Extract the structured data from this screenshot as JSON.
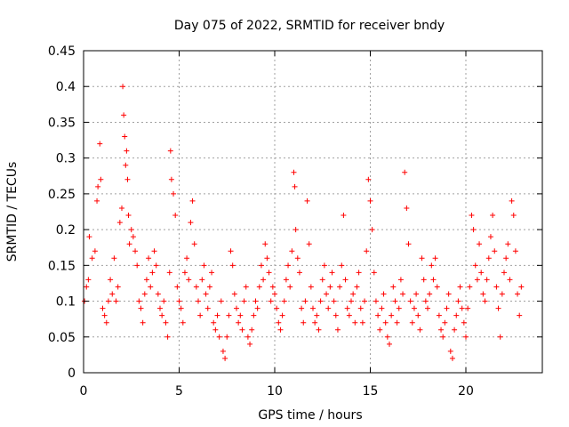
{
  "chart_data": {
    "type": "scatter",
    "title": "Day 075 of 2022, SRMTID for receiver bndy",
    "xlabel": "GPS time / hours",
    "ylabel": "SRMTID / TECUs",
    "xlim": [
      0,
      24
    ],
    "ylim": [
      0,
      0.45
    ],
    "xticks": [
      0,
      5,
      10,
      15,
      20
    ],
    "xtick_labels": [
      "0",
      "5",
      "10",
      "15",
      "20"
    ],
    "yticks": [
      0,
      0.05,
      0.1,
      0.15,
      0.2,
      0.25,
      0.3,
      0.35,
      0.4,
      0.45
    ],
    "ytick_labels": [
      "0",
      "0.05",
      "0.1",
      "0.15",
      "0.2",
      "0.25",
      "0.3",
      "0.35",
      "0.4",
      "0.45"
    ],
    "grid": true,
    "legend": "none",
    "marker": "plus",
    "color": "#ff0000",
    "series": [
      {
        "name": "SRMTID",
        "points": [
          [
            0.05,
            0.1
          ],
          [
            0.15,
            0.12
          ],
          [
            0.25,
            0.13
          ],
          [
            0.3,
            0.19
          ],
          [
            0.45,
            0.16
          ],
          [
            0.6,
            0.17
          ],
          [
            0.7,
            0.24
          ],
          [
            0.75,
            0.26
          ],
          [
            0.85,
            0.32
          ],
          [
            0.9,
            0.27
          ],
          [
            1.0,
            0.09
          ],
          [
            1.1,
            0.08
          ],
          [
            1.2,
            0.07
          ],
          [
            1.3,
            0.1
          ],
          [
            1.4,
            0.13
          ],
          [
            1.5,
            0.11
          ],
          [
            1.6,
            0.16
          ],
          [
            1.7,
            0.1
          ],
          [
            1.8,
            0.12
          ],
          [
            1.9,
            0.21
          ],
          [
            2.0,
            0.23
          ],
          [
            2.05,
            0.4
          ],
          [
            2.1,
            0.36
          ],
          [
            2.15,
            0.33
          ],
          [
            2.2,
            0.29
          ],
          [
            2.25,
            0.31
          ],
          [
            2.3,
            0.27
          ],
          [
            2.35,
            0.22
          ],
          [
            2.4,
            0.18
          ],
          [
            2.5,
            0.2
          ],
          [
            2.6,
            0.19
          ],
          [
            2.7,
            0.17
          ],
          [
            2.8,
            0.15
          ],
          [
            2.9,
            0.1
          ],
          [
            3.0,
            0.09
          ],
          [
            3.1,
            0.07
          ],
          [
            3.2,
            0.11
          ],
          [
            3.3,
            0.13
          ],
          [
            3.4,
            0.16
          ],
          [
            3.5,
            0.12
          ],
          [
            3.6,
            0.14
          ],
          [
            3.7,
            0.17
          ],
          [
            3.8,
            0.15
          ],
          [
            3.9,
            0.11
          ],
          [
            4.0,
            0.09
          ],
          [
            4.1,
            0.08
          ],
          [
            4.2,
            0.1
          ],
          [
            4.3,
            0.07
          ],
          [
            4.4,
            0.05
          ],
          [
            4.5,
            0.14
          ],
          [
            4.55,
            0.31
          ],
          [
            4.6,
            0.27
          ],
          [
            4.7,
            0.25
          ],
          [
            4.8,
            0.22
          ],
          [
            4.9,
            0.12
          ],
          [
            5.0,
            0.1
          ],
          [
            5.1,
            0.09
          ],
          [
            5.2,
            0.07
          ],
          [
            5.3,
            0.14
          ],
          [
            5.4,
            0.16
          ],
          [
            5.5,
            0.13
          ],
          [
            5.6,
            0.21
          ],
          [
            5.7,
            0.24
          ],
          [
            5.8,
            0.18
          ],
          [
            5.9,
            0.12
          ],
          [
            6.0,
            0.1
          ],
          [
            6.1,
            0.08
          ],
          [
            6.2,
            0.13
          ],
          [
            6.3,
            0.15
          ],
          [
            6.4,
            0.11
          ],
          [
            6.5,
            0.09
          ],
          [
            6.6,
            0.12
          ],
          [
            6.7,
            0.14
          ],
          [
            6.8,
            0.07
          ],
          [
            6.9,
            0.06
          ],
          [
            7.0,
            0.08
          ],
          [
            7.1,
            0.05
          ],
          [
            7.2,
            0.1
          ],
          [
            7.3,
            0.03
          ],
          [
            7.4,
            0.02
          ],
          [
            7.5,
            0.05
          ],
          [
            7.6,
            0.08
          ],
          [
            7.7,
            0.17
          ],
          [
            7.8,
            0.15
          ],
          [
            7.9,
            0.11
          ],
          [
            8.0,
            0.09
          ],
          [
            8.1,
            0.07
          ],
          [
            8.2,
            0.08
          ],
          [
            8.3,
            0.06
          ],
          [
            8.4,
            0.1
          ],
          [
            8.5,
            0.12
          ],
          [
            8.6,
            0.05
          ],
          [
            8.7,
            0.04
          ],
          [
            8.8,
            0.06
          ],
          [
            8.9,
            0.08
          ],
          [
            9.0,
            0.1
          ],
          [
            9.1,
            0.09
          ],
          [
            9.2,
            0.12
          ],
          [
            9.3,
            0.15
          ],
          [
            9.4,
            0.13
          ],
          [
            9.5,
            0.18
          ],
          [
            9.6,
            0.16
          ],
          [
            9.7,
            0.14
          ],
          [
            9.8,
            0.1
          ],
          [
            9.9,
            0.12
          ],
          [
            10.0,
            0.11
          ],
          [
            10.1,
            0.09
          ],
          [
            10.2,
            0.07
          ],
          [
            10.3,
            0.06
          ],
          [
            10.4,
            0.08
          ],
          [
            10.5,
            0.1
          ],
          [
            10.6,
            0.13
          ],
          [
            10.7,
            0.15
          ],
          [
            10.8,
            0.12
          ],
          [
            10.9,
            0.17
          ],
          [
            11.0,
            0.28
          ],
          [
            11.05,
            0.26
          ],
          [
            11.1,
            0.2
          ],
          [
            11.2,
            0.16
          ],
          [
            11.3,
            0.14
          ],
          [
            11.4,
            0.09
          ],
          [
            11.5,
            0.07
          ],
          [
            11.6,
            0.1
          ],
          [
            11.7,
            0.24
          ],
          [
            11.8,
            0.18
          ],
          [
            11.9,
            0.12
          ],
          [
            12.0,
            0.09
          ],
          [
            12.1,
            0.07
          ],
          [
            12.2,
            0.08
          ],
          [
            12.3,
            0.06
          ],
          [
            12.4,
            0.1
          ],
          [
            12.5,
            0.13
          ],
          [
            12.6,
            0.15
          ],
          [
            12.7,
            0.11
          ],
          [
            12.8,
            0.09
          ],
          [
            12.9,
            0.12
          ],
          [
            13.0,
            0.14
          ],
          [
            13.1,
            0.1
          ],
          [
            13.2,
            0.08
          ],
          [
            13.3,
            0.06
          ],
          [
            13.4,
            0.12
          ],
          [
            13.5,
            0.15
          ],
          [
            13.6,
            0.22
          ],
          [
            13.7,
            0.13
          ],
          [
            13.8,
            0.09
          ],
          [
            13.9,
            0.08
          ],
          [
            14.0,
            0.1
          ],
          [
            14.1,
            0.11
          ],
          [
            14.2,
            0.07
          ],
          [
            14.3,
            0.12
          ],
          [
            14.4,
            0.14
          ],
          [
            14.5,
            0.09
          ],
          [
            14.6,
            0.07
          ],
          [
            14.7,
            0.1
          ],
          [
            14.8,
            0.17
          ],
          [
            14.9,
            0.27
          ],
          [
            15.0,
            0.24
          ],
          [
            15.1,
            0.2
          ],
          [
            15.2,
            0.14
          ],
          [
            15.3,
            0.1
          ],
          [
            15.4,
            0.08
          ],
          [
            15.5,
            0.06
          ],
          [
            15.6,
            0.09
          ],
          [
            15.7,
            0.11
          ],
          [
            15.8,
            0.07
          ],
          [
            15.9,
            0.05
          ],
          [
            16.0,
            0.04
          ],
          [
            16.1,
            0.08
          ],
          [
            16.2,
            0.12
          ],
          [
            16.3,
            0.1
          ],
          [
            16.4,
            0.07
          ],
          [
            16.5,
            0.09
          ],
          [
            16.6,
            0.13
          ],
          [
            16.7,
            0.11
          ],
          [
            16.8,
            0.28
          ],
          [
            16.9,
            0.23
          ],
          [
            17.0,
            0.18
          ],
          [
            17.1,
            0.1
          ],
          [
            17.2,
            0.07
          ],
          [
            17.3,
            0.09
          ],
          [
            17.4,
            0.11
          ],
          [
            17.5,
            0.08
          ],
          [
            17.6,
            0.06
          ],
          [
            17.7,
            0.16
          ],
          [
            17.8,
            0.13
          ],
          [
            17.9,
            0.1
          ],
          [
            18.0,
            0.09
          ],
          [
            18.1,
            0.11
          ],
          [
            18.2,
            0.15
          ],
          [
            18.3,
            0.13
          ],
          [
            18.4,
            0.16
          ],
          [
            18.5,
            0.12
          ],
          [
            18.6,
            0.08
          ],
          [
            18.7,
            0.06
          ],
          [
            18.8,
            0.05
          ],
          [
            18.9,
            0.07
          ],
          [
            19.0,
            0.09
          ],
          [
            19.1,
            0.11
          ],
          [
            19.2,
            0.03
          ],
          [
            19.3,
            0.02
          ],
          [
            19.4,
            0.06
          ],
          [
            19.5,
            0.08
          ],
          [
            19.6,
            0.1
          ],
          [
            19.7,
            0.12
          ],
          [
            19.8,
            0.09
          ],
          [
            19.9,
            0.07
          ],
          [
            20.0,
            0.05
          ],
          [
            20.1,
            0.09
          ],
          [
            20.2,
            0.12
          ],
          [
            20.3,
            0.22
          ],
          [
            20.4,
            0.2
          ],
          [
            20.5,
            0.15
          ],
          [
            20.6,
            0.13
          ],
          [
            20.7,
            0.18
          ],
          [
            20.8,
            0.14
          ],
          [
            20.9,
            0.11
          ],
          [
            21.0,
            0.1
          ],
          [
            21.1,
            0.13
          ],
          [
            21.2,
            0.16
          ],
          [
            21.3,
            0.19
          ],
          [
            21.4,
            0.22
          ],
          [
            21.5,
            0.17
          ],
          [
            21.6,
            0.12
          ],
          [
            21.7,
            0.09
          ],
          [
            21.8,
            0.05
          ],
          [
            21.9,
            0.11
          ],
          [
            22.0,
            0.14
          ],
          [
            22.1,
            0.16
          ],
          [
            22.2,
            0.18
          ],
          [
            22.3,
            0.13
          ],
          [
            22.4,
            0.24
          ],
          [
            22.5,
            0.22
          ],
          [
            22.6,
            0.17
          ],
          [
            22.7,
            0.11
          ],
          [
            22.8,
            0.08
          ],
          [
            22.9,
            0.12
          ]
        ]
      }
    ]
  }
}
